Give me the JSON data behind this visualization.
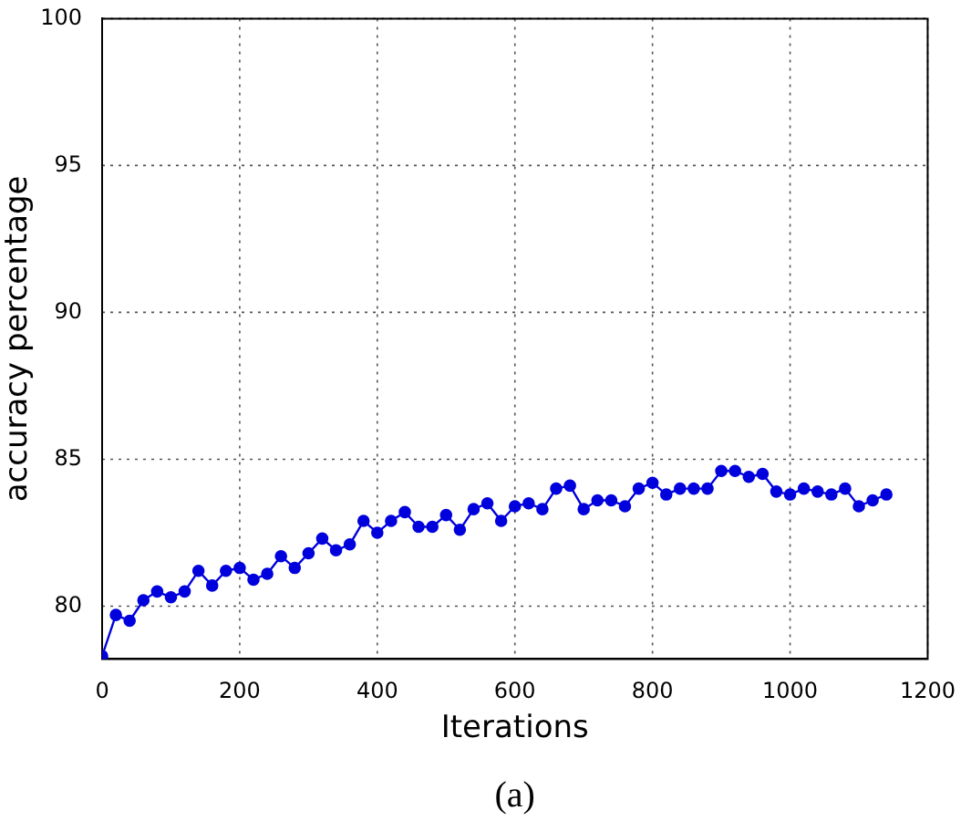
{
  "chart_data": {
    "type": "line",
    "xlabel": "Iterations",
    "ylabel": "accuracy percentage",
    "annotations": [
      "(a)"
    ],
    "x": [
      0,
      20,
      40,
      60,
      80,
      100,
      120,
      140,
      160,
      180,
      200,
      220,
      240,
      260,
      280,
      300,
      320,
      340,
      360,
      380,
      400,
      420,
      440,
      460,
      480,
      500,
      520,
      540,
      560,
      580,
      600,
      620,
      640,
      660,
      680,
      700,
      720,
      740,
      760,
      780,
      800,
      820,
      840,
      860,
      880,
      900,
      920,
      940,
      960,
      980,
      1000,
      1020,
      1040,
      1060,
      1080,
      1100,
      1120,
      1140
    ],
    "series": [
      {
        "color": "#0000dd",
        "values": [
          78.3,
          79.7,
          79.5,
          80.2,
          80.5,
          80.3,
          80.5,
          81.2,
          80.7,
          81.2,
          81.3,
          80.9,
          81.1,
          81.7,
          81.3,
          81.8,
          82.3,
          81.9,
          82.1,
          82.9,
          82.5,
          82.9,
          83.2,
          82.7,
          82.7,
          83.1,
          82.6,
          83.3,
          83.5,
          82.9,
          83.4,
          83.5,
          83.3,
          84.0,
          84.1,
          83.3,
          83.6,
          83.6,
          83.4,
          84.0,
          84.2,
          83.8,
          84.0,
          84.0,
          84.0,
          84.6,
          84.6,
          84.4,
          84.5,
          83.9,
          83.8,
          84.0,
          83.9,
          83.8,
          84.0,
          83.4,
          83.6,
          83.8
        ]
      }
    ],
    "xlim": [
      0,
      1200
    ],
    "xticks": [
      0,
      200,
      400,
      600,
      800,
      1000,
      1200
    ],
    "ylim": [
      78.2,
      100
    ],
    "yticks": [
      80,
      85,
      90,
      95,
      100
    ],
    "grid": true,
    "legend": false,
    "marker": "circle",
    "line_style": "solid"
  }
}
